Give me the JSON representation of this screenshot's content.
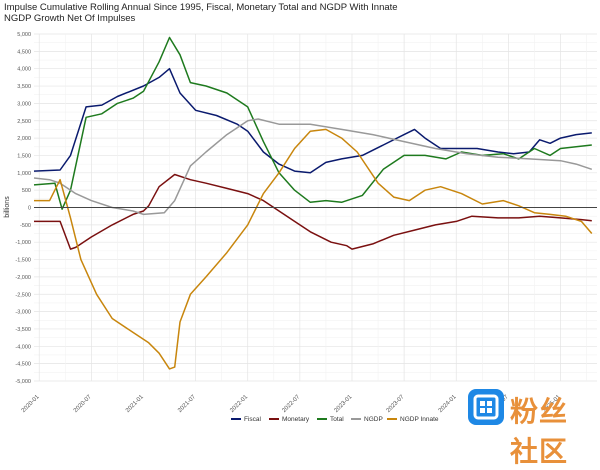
{
  "title": "Impulse Cumulative Rolling Annual Since 1995, Fiscal, Monetary Total and NGDP With Innate NGDP Growth Net Of Impulses",
  "chart_data": {
    "type": "line",
    "title": "Impulse Cumulative Rolling Annual Since 1995, Fiscal, Monetary Total and NGDP With Innate NGDP Growth Net Of Impulses",
    "ylabel": "billions",
    "xlabel": "",
    "ylim": [
      -5000,
      5000
    ],
    "yticks": [
      5000,
      4500,
      4000,
      3500,
      3000,
      2500,
      2000,
      1500,
      1000,
      500,
      0,
      -500,
      -1000,
      -1500,
      -2000,
      -2500,
      -3000,
      -3500,
      -4000,
      -4500,
      -5000
    ],
    "ytick_labels": [
      "5,000",
      "4,500",
      "4,000",
      "3,500",
      "3,000",
      "2,500",
      "2,000",
      "1,500",
      "1,000",
      "500",
      "0",
      "-500",
      "-1,000",
      "-1,500",
      "-2,000",
      "-2,500",
      "-3,000",
      "-3,500",
      "-4,000",
      "-4,500",
      "-5,000"
    ],
    "x_categories": [
      "2020-01",
      "2020-07",
      "2021-01",
      "2021-07",
      "2022-01",
      "2022-07",
      "2023-01",
      "2023-07",
      "2024-01",
      "2024-07",
      "2025-01"
    ],
    "xlim": [
      2019.95,
      2025.35
    ],
    "grid": true,
    "legend_position": "bottom",
    "series": [
      {
        "name": "Fiscal",
        "color": "#0a1a6e",
        "points": [
          [
            2019.95,
            1050
          ],
          [
            2020.2,
            1080
          ],
          [
            2020.3,
            1500
          ],
          [
            2020.45,
            2900
          ],
          [
            2020.6,
            2950
          ],
          [
            2020.75,
            3200
          ],
          [
            2021.0,
            3500
          ],
          [
            2021.15,
            3750
          ],
          [
            2021.25,
            4000
          ],
          [
            2021.35,
            3300
          ],
          [
            2021.5,
            2800
          ],
          [
            2021.7,
            2650
          ],
          [
            2021.9,
            2400
          ],
          [
            2022.0,
            2200
          ],
          [
            2022.15,
            1600
          ],
          [
            2022.3,
            1250
          ],
          [
            2022.45,
            1050
          ],
          [
            2022.6,
            1000
          ],
          [
            2022.75,
            1300
          ],
          [
            2022.9,
            1400
          ],
          [
            2023.1,
            1500
          ],
          [
            2023.3,
            1800
          ],
          [
            2023.5,
            2100
          ],
          [
            2023.6,
            2250
          ],
          [
            2023.7,
            2000
          ],
          [
            2023.85,
            1700
          ],
          [
            2024.0,
            1700
          ],
          [
            2024.2,
            1700
          ],
          [
            2024.4,
            1600
          ],
          [
            2024.55,
            1550
          ],
          [
            2024.7,
            1600
          ],
          [
            2024.8,
            1950
          ],
          [
            2024.9,
            1850
          ],
          [
            2025.0,
            2000
          ],
          [
            2025.15,
            2100
          ],
          [
            2025.3,
            2150
          ]
        ]
      },
      {
        "name": "Monetary",
        "color": "#7a1010",
        "points": [
          [
            2019.95,
            -400
          ],
          [
            2020.1,
            -400
          ],
          [
            2020.2,
            -400
          ],
          [
            2020.3,
            -1200
          ],
          [
            2020.35,
            -1150
          ],
          [
            2020.5,
            -850
          ],
          [
            2020.7,
            -500
          ],
          [
            2020.9,
            -200
          ],
          [
            2021.0,
            -100
          ],
          [
            2021.05,
            50
          ],
          [
            2021.15,
            600
          ],
          [
            2021.3,
            950
          ],
          [
            2021.45,
            800
          ],
          [
            2021.6,
            700
          ],
          [
            2021.8,
            550
          ],
          [
            2022.0,
            400
          ],
          [
            2022.15,
            200
          ],
          [
            2022.3,
            -100
          ],
          [
            2022.45,
            -400
          ],
          [
            2022.6,
            -700
          ],
          [
            2022.8,
            -1000
          ],
          [
            2022.95,
            -1100
          ],
          [
            2023.0,
            -1200
          ],
          [
            2023.2,
            -1050
          ],
          [
            2023.4,
            -800
          ],
          [
            2023.6,
            -650
          ],
          [
            2023.8,
            -500
          ],
          [
            2024.0,
            -400
          ],
          [
            2024.15,
            -250
          ],
          [
            2024.4,
            -300
          ],
          [
            2024.6,
            -300
          ],
          [
            2024.8,
            -250
          ],
          [
            2025.0,
            -300
          ],
          [
            2025.2,
            -350
          ],
          [
            2025.3,
            -380
          ]
        ]
      },
      {
        "name": "Total",
        "color": "#1e7a1e",
        "points": [
          [
            2019.95,
            650
          ],
          [
            2020.15,
            700
          ],
          [
            2020.22,
            -50
          ],
          [
            2020.3,
            500
          ],
          [
            2020.45,
            2600
          ],
          [
            2020.6,
            2700
          ],
          [
            2020.75,
            3000
          ],
          [
            2020.9,
            3150
          ],
          [
            2021.0,
            3350
          ],
          [
            2021.15,
            4200
          ],
          [
            2021.25,
            4900
          ],
          [
            2021.35,
            4400
          ],
          [
            2021.45,
            3600
          ],
          [
            2021.6,
            3500
          ],
          [
            2021.8,
            3300
          ],
          [
            2022.0,
            2900
          ],
          [
            2022.15,
            1900
          ],
          [
            2022.3,
            1000
          ],
          [
            2022.45,
            500
          ],
          [
            2022.6,
            150
          ],
          [
            2022.75,
            200
          ],
          [
            2022.9,
            150
          ],
          [
            2023.1,
            350
          ],
          [
            2023.3,
            1100
          ],
          [
            2023.5,
            1500
          ],
          [
            2023.7,
            1500
          ],
          [
            2023.9,
            1400
          ],
          [
            2024.05,
            1600
          ],
          [
            2024.25,
            1500
          ],
          [
            2024.45,
            1550
          ],
          [
            2024.6,
            1400
          ],
          [
            2024.75,
            1700
          ],
          [
            2024.9,
            1500
          ],
          [
            2025.0,
            1700
          ],
          [
            2025.15,
            1750
          ],
          [
            2025.3,
            1800
          ]
        ]
      },
      {
        "name": "NGDP",
        "color": "#999999",
        "points": [
          [
            2019.95,
            850
          ],
          [
            2020.1,
            800
          ],
          [
            2020.2,
            700
          ],
          [
            2020.35,
            400
          ],
          [
            2020.5,
            200
          ],
          [
            2020.7,
            0
          ],
          [
            2020.9,
            -100
          ],
          [
            2021.0,
            -200
          ],
          [
            2021.2,
            -150
          ],
          [
            2021.3,
            200
          ],
          [
            2021.45,
            1200
          ],
          [
            2021.6,
            1600
          ],
          [
            2021.8,
            2100
          ],
          [
            2022.0,
            2500
          ],
          [
            2022.1,
            2550
          ],
          [
            2022.3,
            2400
          ],
          [
            2022.6,
            2400
          ],
          [
            2022.9,
            2250
          ],
          [
            2023.2,
            2100
          ],
          [
            2023.5,
            1900
          ],
          [
            2023.8,
            1700
          ],
          [
            2024.1,
            1550
          ],
          [
            2024.4,
            1450
          ],
          [
            2024.7,
            1400
          ],
          [
            2025.0,
            1350
          ],
          [
            2025.15,
            1250
          ],
          [
            2025.3,
            1100
          ]
        ]
      },
      {
        "name": "NGDP Innate",
        "color": "#c8860d",
        "points": [
          [
            2019.95,
            200
          ],
          [
            2020.1,
            200
          ],
          [
            2020.2,
            800
          ],
          [
            2020.3,
            -300
          ],
          [
            2020.4,
            -1500
          ],
          [
            2020.55,
            -2500
          ],
          [
            2020.7,
            -3200
          ],
          [
            2020.9,
            -3600
          ],
          [
            2021.05,
            -3900
          ],
          [
            2021.15,
            -4200
          ],
          [
            2021.25,
            -4650
          ],
          [
            2021.3,
            -4600
          ],
          [
            2021.35,
            -3300
          ],
          [
            2021.45,
            -2500
          ],
          [
            2021.6,
            -2000
          ],
          [
            2021.8,
            -1300
          ],
          [
            2022.0,
            -500
          ],
          [
            2022.15,
            400
          ],
          [
            2022.3,
            1000
          ],
          [
            2022.45,
            1700
          ],
          [
            2022.6,
            2200
          ],
          [
            2022.75,
            2250
          ],
          [
            2022.9,
            2000
          ],
          [
            2023.05,
            1600
          ],
          [
            2023.25,
            700
          ],
          [
            2023.4,
            300
          ],
          [
            2023.55,
            200
          ],
          [
            2023.7,
            500
          ],
          [
            2023.85,
            600
          ],
          [
            2024.05,
            400
          ],
          [
            2024.25,
            100
          ],
          [
            2024.45,
            200
          ],
          [
            2024.6,
            50
          ],
          [
            2024.75,
            -150
          ],
          [
            2024.9,
            -200
          ],
          [
            2025.05,
            -250
          ],
          [
            2025.2,
            -400
          ],
          [
            2025.3,
            -750
          ]
        ]
      }
    ]
  },
  "watermark": {
    "text": "粉丝社区"
  }
}
